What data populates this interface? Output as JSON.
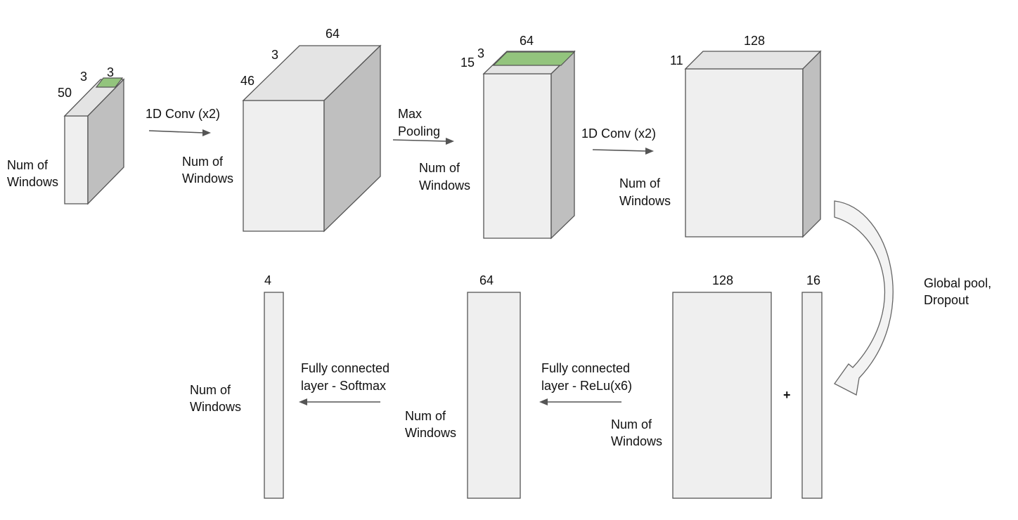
{
  "blocks": [
    {
      "dims": [
        "50",
        "3",
        "3"
      ],
      "label": [
        "Num of",
        "Windows"
      ]
    },
    {
      "dims": [
        "46",
        "3",
        "64"
      ],
      "label": [
        "Num of",
        "Windows"
      ]
    },
    {
      "dims": [
        "15",
        "3",
        "64"
      ],
      "label": [
        "Num of",
        "Windows"
      ]
    },
    {
      "dims": [
        "11",
        "128"
      ],
      "label": [
        "Num of",
        "Windows"
      ]
    }
  ],
  "ops": {
    "conv1": [
      "1D Conv (x2)"
    ],
    "pool": [
      "Max",
      "Pooling"
    ],
    "conv2": [
      "1D Conv (x2)"
    ],
    "global": [
      "Global pool,",
      "Dropout"
    ],
    "fc_relu": [
      "Fully connected",
      "layer - ReLu(x6)"
    ],
    "fc_softmax": [
      "Fully connected",
      "layer - Softmax"
    ]
  },
  "bottom": {
    "concat_a": {
      "dim": "128",
      "label": [
        "Num of",
        "Windows"
      ]
    },
    "concat_b": {
      "dim": "16"
    },
    "plus": "+",
    "dense": {
      "dim": "64",
      "label": [
        "Num of",
        "Windows"
      ]
    },
    "output": {
      "dim": "4",
      "label": [
        "Num of",
        "Windows"
      ]
    }
  },
  "colors": {
    "front": "#efefef",
    "side": "#bfbfbf",
    "highlight": "#93c47d",
    "stroke": "#555555"
  }
}
